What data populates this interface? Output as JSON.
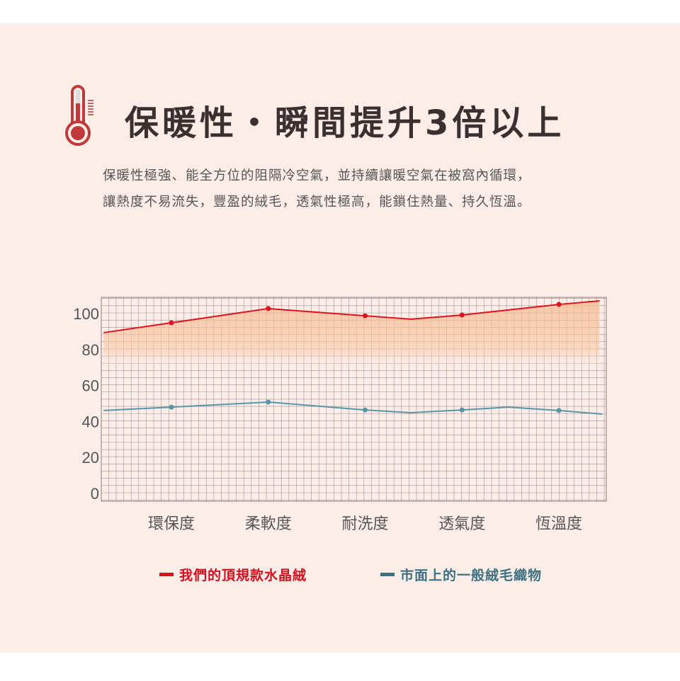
{
  "title": "保暖性・瞬間提升3倍以上",
  "description": [
    "保暖性極強、能全方位的阻隔冷空氣，並持續讓暖空氣在被窩內循環，",
    "讓熱度不易流失，豐盈的絨毛，透氣性極高，能鎖住熱量、持久恆溫。"
  ],
  "icon": "thermometer-icon",
  "chart_data": {
    "type": "line",
    "title": "",
    "xlabel": "",
    "ylabel": "",
    "categories": [
      "環保度",
      "柔軟度",
      "耐洗度",
      "透氣度",
      "恆溫度"
    ],
    "y_ticks": [
      0,
      20,
      40,
      60,
      80,
      100
    ],
    "ylim": [
      -5,
      109
    ],
    "grid": true,
    "legend_position": "bottom",
    "series": [
      {
        "name": "我們的頂規款水晶絨",
        "color": "#e0101e",
        "fill": true,
        "points": [
          [
            0.3,
            89
          ],
          [
            1,
            94.5
          ],
          [
            2,
            102.4
          ],
          [
            3,
            98.4
          ],
          [
            3.47,
            96.5
          ],
          [
            4,
            98.8
          ],
          [
            5,
            104.7
          ],
          [
            5.42,
            106.7
          ]
        ],
        "markers": [
          1,
          2,
          3,
          4,
          5
        ]
      },
      {
        "name": "市面上的一般絨毛織物",
        "color": "#5a95a5",
        "points": [
          [
            0.3,
            45.7
          ],
          [
            1,
            47.6
          ],
          [
            2,
            50.4
          ],
          [
            3,
            46
          ],
          [
            3.47,
            44.5
          ],
          [
            4,
            46
          ],
          [
            4.48,
            47.6
          ],
          [
            5,
            45.7
          ],
          [
            5.45,
            43.7
          ]
        ],
        "markers": [
          1,
          2,
          3,
          4,
          5
        ]
      }
    ]
  },
  "legend": {
    "ours": "我們的頂規款水晶絨",
    "others": "市面上的一般絨毛織物",
    "ours_color": "#d0101e",
    "others_color": "#3e7180"
  }
}
